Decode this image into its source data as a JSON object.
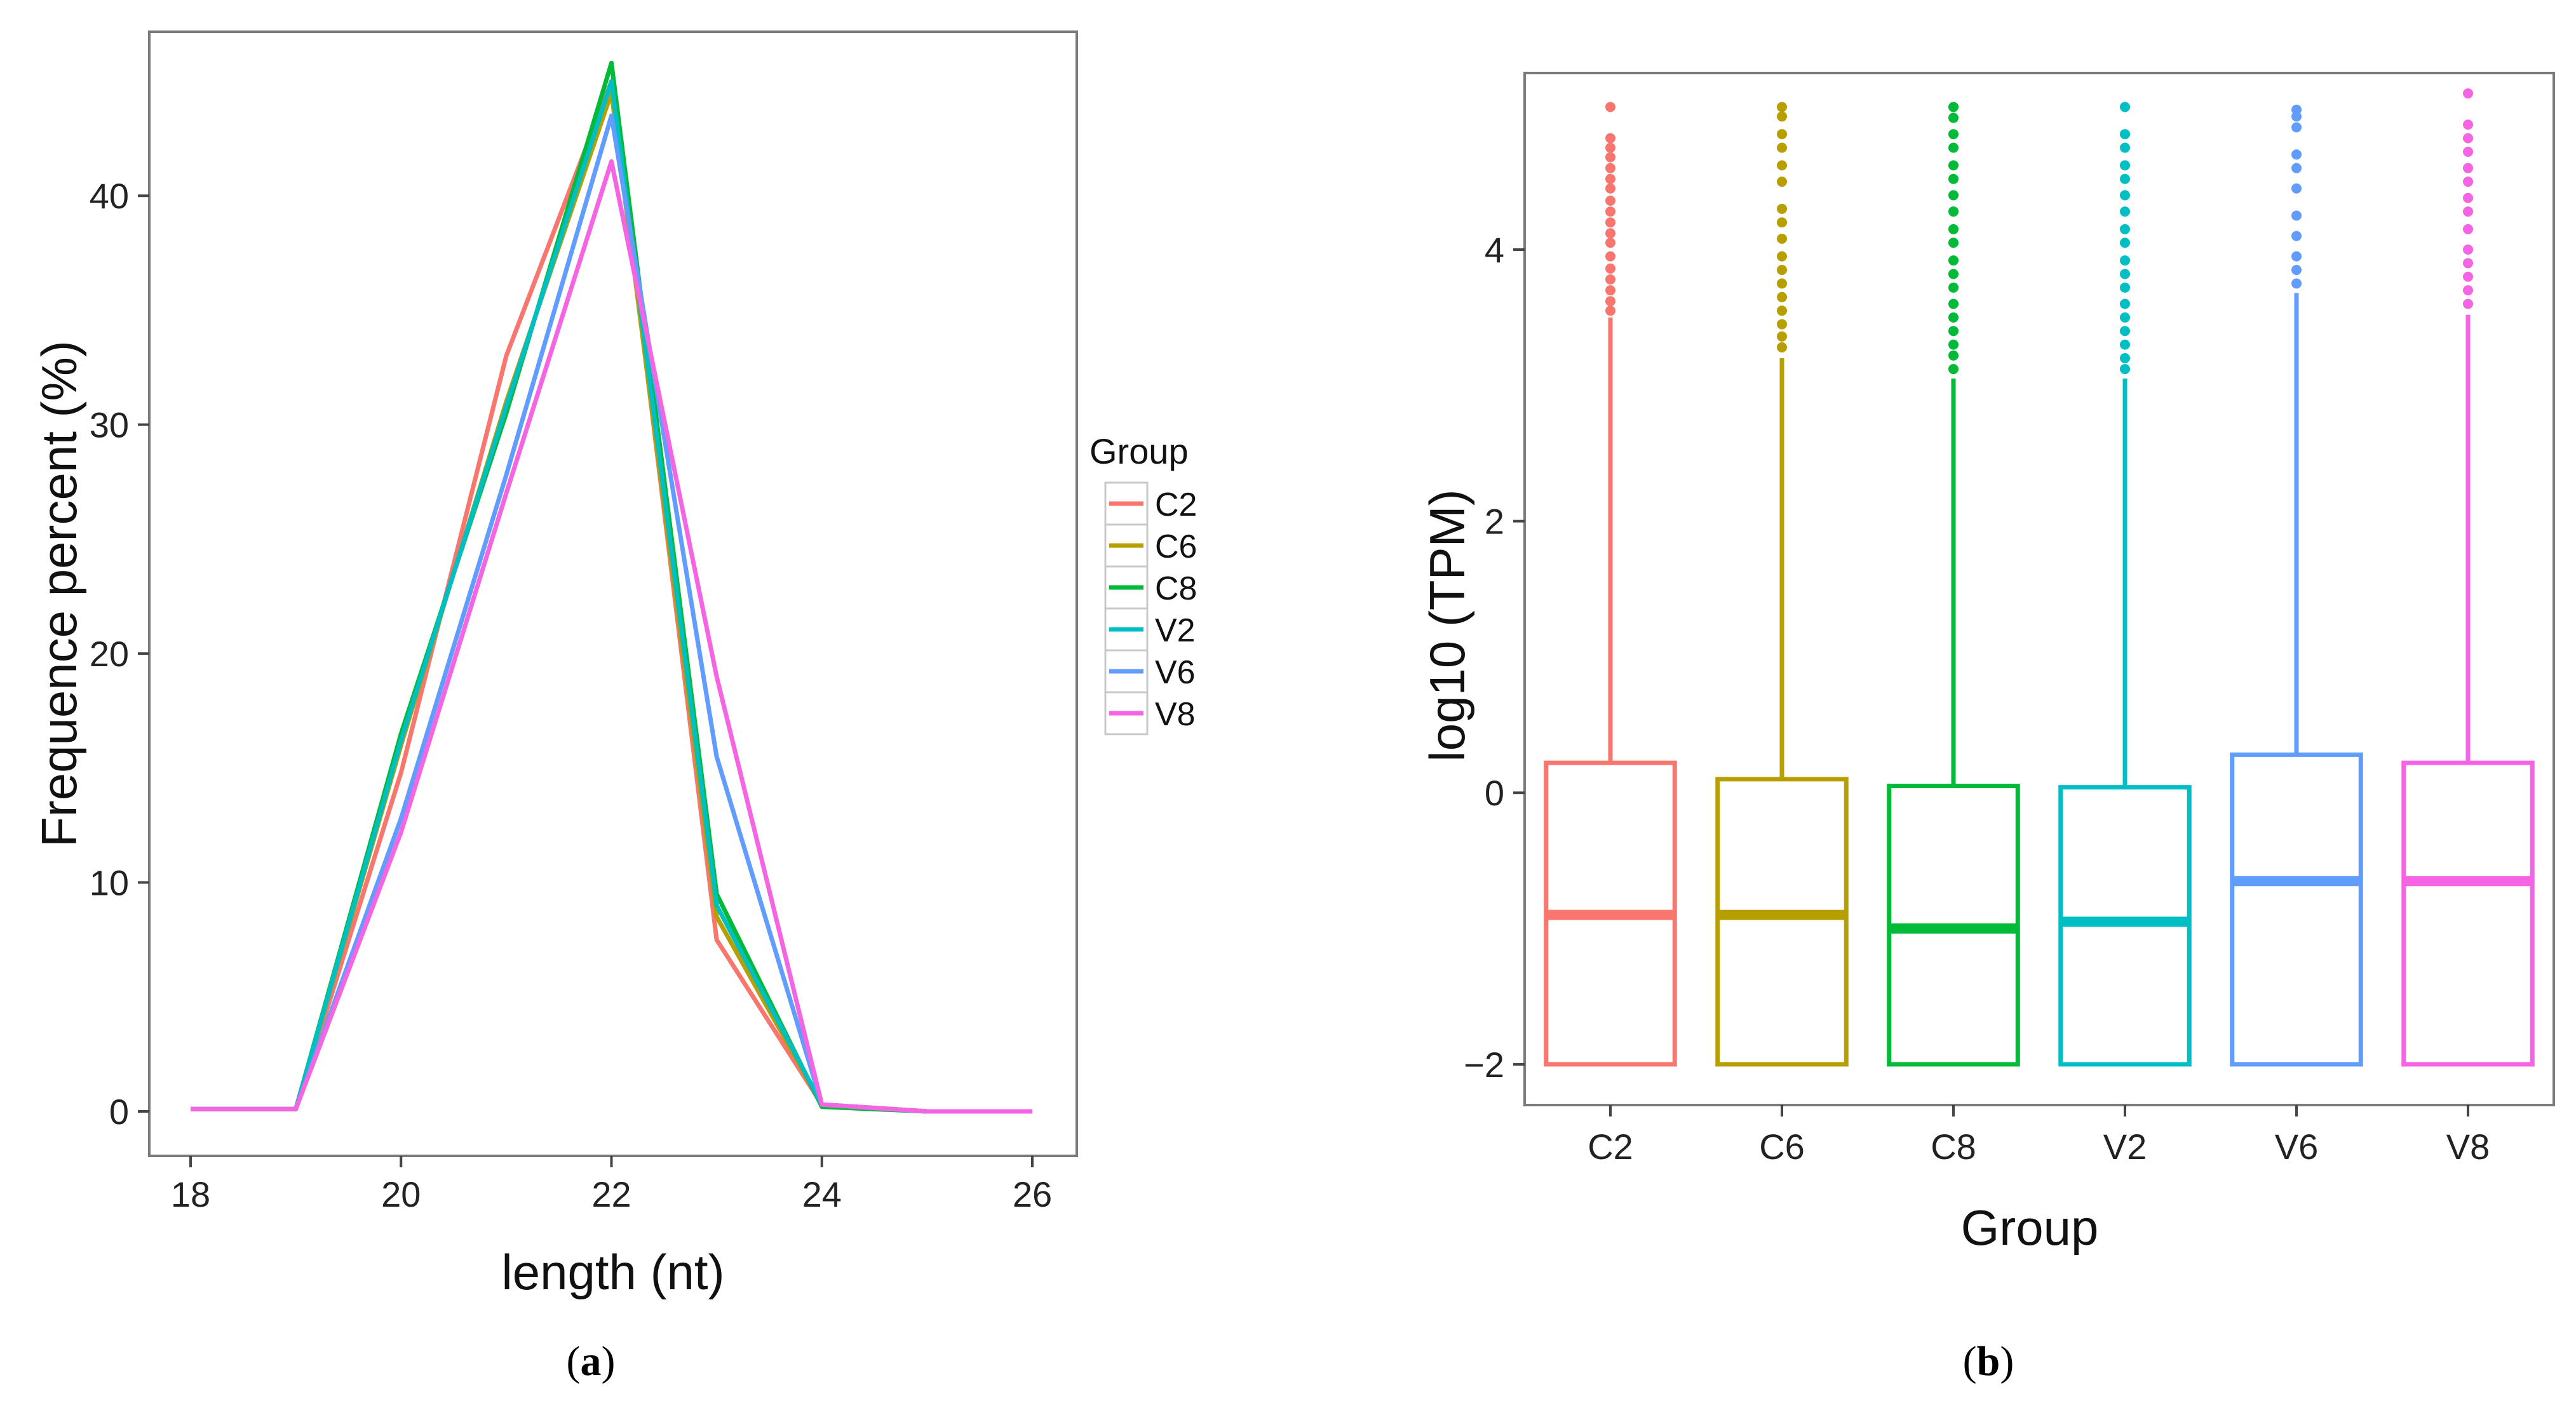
{
  "chart_data": [
    {
      "type": "line",
      "panel": "a",
      "caption_letter": "a",
      "xlabel": "length (nt)",
      "ylabel": "Frequence percent (%)",
      "xlim": [
        18,
        26
      ],
      "ylim": [
        0,
        45.5
      ],
      "x_ticks": [
        18,
        20,
        22,
        24,
        26
      ],
      "y_ticks": [
        0,
        10,
        20,
        30,
        40
      ],
      "legend_title": "Group",
      "legend_position": "right",
      "x": [
        18,
        19,
        20,
        21,
        22,
        23,
        24,
        25,
        26
      ],
      "series": [
        {
          "name": "C2",
          "color": "#F8766D",
          "values": [
            0.1,
            0.1,
            14.8,
            33.0,
            45.0,
            7.5,
            0.3,
            0.0,
            0.0
          ]
        },
        {
          "name": "C6",
          "color": "#B79F00",
          "values": [
            0.1,
            0.1,
            16.0,
            31.0,
            44.5,
            8.5,
            0.3,
            0.0,
            0.0
          ]
        },
        {
          "name": "C8",
          "color": "#00BA38",
          "values": [
            0.1,
            0.1,
            16.5,
            30.5,
            45.8,
            9.5,
            0.2,
            0.0,
            0.0
          ]
        },
        {
          "name": "V2",
          "color": "#00BFC4",
          "values": [
            0.1,
            0.1,
            16.2,
            30.8,
            45.0,
            9.0,
            0.3,
            0.0,
            0.0
          ]
        },
        {
          "name": "V6",
          "color": "#619CFF",
          "values": [
            0.1,
            0.1,
            12.8,
            27.8,
            43.5,
            15.5,
            0.3,
            0.0,
            0.0
          ]
        },
        {
          "name": "V8",
          "color": "#F564E3",
          "values": [
            0.1,
            0.1,
            12.2,
            27.0,
            41.5,
            19.0,
            0.3,
            0.0,
            0.0
          ]
        }
      ]
    },
    {
      "type": "box",
      "panel": "b",
      "caption_letter": "b",
      "xlabel": "Group",
      "ylabel": "log10 (TPM)",
      "ylim": [
        -2.3,
        5.3
      ],
      "y_ticks": [
        -2,
        0,
        2,
        4
      ],
      "categories": [
        "C2",
        "C6",
        "C8",
        "V2",
        "V6",
        "V8"
      ],
      "boxes": [
        {
          "name": "C2",
          "color": "#F8766D",
          "lower_whisker": -2.0,
          "q1": -2.0,
          "median": -0.9,
          "q3": 0.22,
          "upper_whisker": 3.5,
          "outliers": [
            3.55,
            3.62,
            3.7,
            3.78,
            3.86,
            3.95,
            4.05,
            4.12,
            4.2,
            4.28,
            4.36,
            4.45,
            4.52,
            4.6,
            4.68,
            4.75,
            4.82,
            5.05
          ]
        },
        {
          "name": "C6",
          "color": "#B79F00",
          "lower_whisker": -2.0,
          "q1": -2.0,
          "median": -0.9,
          "q3": 0.1,
          "upper_whisker": 3.2,
          "outliers": [
            3.28,
            3.36,
            3.45,
            3.55,
            3.65,
            3.75,
            3.85,
            3.95,
            4.08,
            4.2,
            4.3,
            4.5,
            4.62,
            4.75,
            4.85,
            4.98,
            5.05
          ]
        },
        {
          "name": "C8",
          "color": "#00BA38",
          "lower_whisker": -2.0,
          "q1": -2.0,
          "median": -1.0,
          "q3": 0.05,
          "upper_whisker": 3.05,
          "outliers": [
            3.12,
            3.22,
            3.3,
            3.4,
            3.5,
            3.6,
            3.72,
            3.82,
            3.92,
            4.05,
            4.15,
            4.28,
            4.4,
            4.52,
            4.62,
            4.75,
            4.85,
            4.97,
            5.05
          ]
        },
        {
          "name": "V2",
          "color": "#00BFC4",
          "lower_whisker": -2.0,
          "q1": -2.0,
          "median": -0.95,
          "q3": 0.04,
          "upper_whisker": 3.05,
          "outliers": [
            3.12,
            3.2,
            3.3,
            3.4,
            3.5,
            3.6,
            3.72,
            3.82,
            3.92,
            4.05,
            4.15,
            4.28,
            4.4,
            4.52,
            4.62,
            4.75,
            4.85,
            5.05
          ]
        },
        {
          "name": "V6",
          "color": "#619CFF",
          "lower_whisker": -2.0,
          "q1": -2.0,
          "median": -0.65,
          "q3": 0.28,
          "upper_whisker": 3.68,
          "outliers": [
            3.75,
            3.85,
            3.95,
            4.1,
            4.25,
            4.45,
            4.6,
            4.7,
            4.9,
            4.98,
            5.03
          ]
        },
        {
          "name": "V8",
          "color": "#F564E3",
          "lower_whisker": -2.0,
          "q1": -2.0,
          "median": -0.65,
          "q3": 0.22,
          "upper_whisker": 3.52,
          "outliers": [
            3.6,
            3.7,
            3.8,
            3.9,
            4.0,
            4.15,
            4.28,
            4.38,
            4.5,
            4.6,
            4.72,
            4.82,
            4.92,
            5.15
          ]
        }
      ]
    }
  ]
}
